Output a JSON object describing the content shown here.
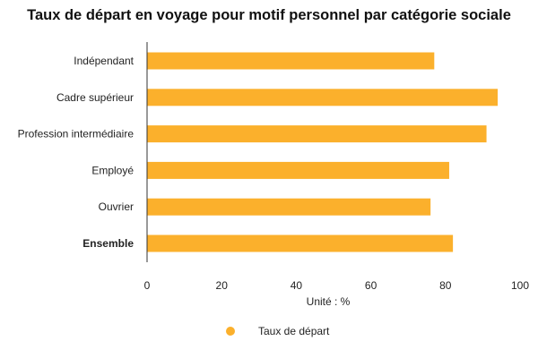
{
  "chart_data": {
    "type": "bar",
    "orientation": "horizontal",
    "title": "Taux de départ en voyage pour motif personnel par catégorie sociale",
    "categories": [
      "Indépendant",
      "Cadre supérieur",
      "Profession intermédiaire",
      "Employé",
      "Ouvrier",
      "Ensemble"
    ],
    "emphasized_category": "Ensemble",
    "series": [
      {
        "name": "Taux de départ",
        "values": [
          77,
          94,
          91,
          81,
          76,
          82
        ],
        "color": "#FBB02C"
      }
    ],
    "xlabel": "Unité : %",
    "xlim": [
      0,
      100
    ],
    "xticks": [
      0,
      20,
      40,
      60,
      80,
      100
    ],
    "grid": false,
    "legend_position": "bottom"
  }
}
